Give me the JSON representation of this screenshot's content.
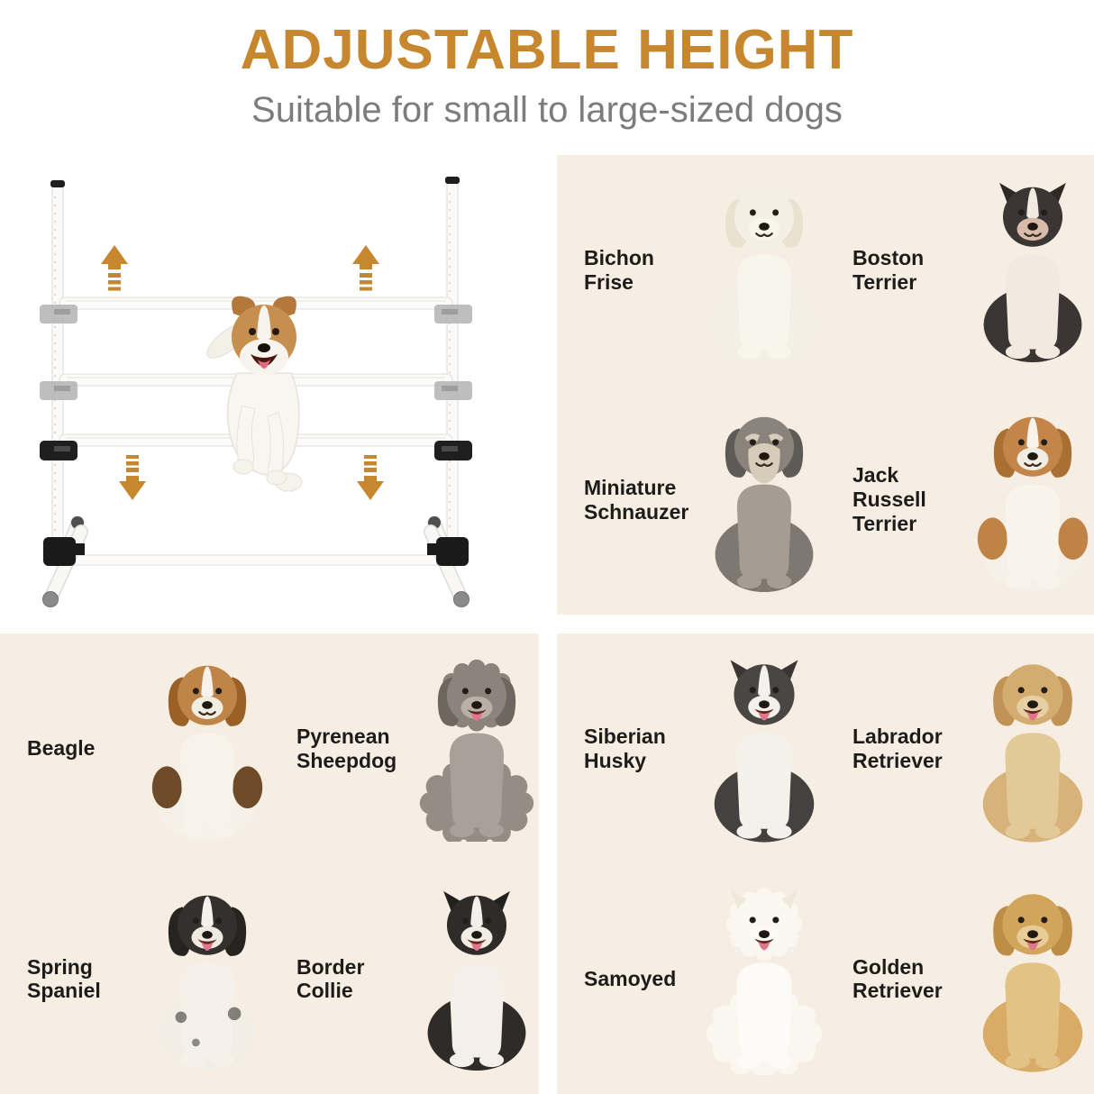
{
  "header": {
    "title": "ADJUSTABLE HEIGHT",
    "subtitle": "Suitable for small to large-sized dogs"
  },
  "colors": {
    "accent_orange": "#C6872F",
    "subtitle_gray": "#7C7C7C",
    "panel_background": "#F7EEE3",
    "label_color": "#1D1C1A",
    "page_background": "#FFFFFF"
  },
  "product_illustration": {
    "name": "adjustable-height dog agility jump with jumping dog",
    "icons": [
      "up-arrow",
      "up-arrow",
      "down-arrow",
      "down-arrow"
    ],
    "arrow_color": "#C6872F"
  },
  "panels": [
    {
      "id": "small-dogs",
      "position": "top-right",
      "breeds": [
        {
          "label": "Bichon Frise",
          "illustration": {
            "ears": "drop",
            "fluffy": true,
            "colors": {
              "body": "#F3EFE4",
              "chest": "#F8F5EC",
              "head": "#F3EFE4",
              "ear": "#EAE2D1",
              "muzzle": "#F8F5EC"
            }
          }
        },
        {
          "label": "Boston Terrier",
          "illustration": {
            "ears": "pointy",
            "colors": {
              "body": "#3B3533",
              "chest": "#F2EAE0",
              "head": "#3B3533",
              "ear": "#2E2927",
              "muzzle": "#D8BBAB",
              "blaze": "#F2EAE0"
            }
          }
        },
        {
          "label": "Miniature Schnauzer",
          "illustration": {
            "ears": "drop",
            "beard": true,
            "brows": true,
            "colors": {
              "body": "#7D7872",
              "chest": "#A59D93",
              "head": "#89837C",
              "ear": "#5E5A55",
              "muzzle": "#D6CCBA"
            }
          }
        },
        {
          "label": "Jack Russell Terrier",
          "illustration": {
            "ears": "drop",
            "colors": {
              "body": "#F5F1E8",
              "chest": "#F8F4EC",
              "head": "#C3854A",
              "ear": "#A96F33",
              "muzzle": "#F2EDE2",
              "blaze": "#F8F4EC",
              "saddle": "#C08347"
            }
          }
        }
      ]
    },
    {
      "id": "medium-dogs",
      "position": "bottom-left",
      "breeds": [
        {
          "label": "Beagle",
          "illustration": {
            "ears": "drop",
            "colors": {
              "body": "#F5F1E8",
              "chest": "#F7F3EA",
              "head": "#BE8448",
              "ear": "#9A6126",
              "muzzle": "#F2EDE1",
              "blaze": "#F7F3EA",
              "saddle": "#6E4A28"
            }
          }
        },
        {
          "label": "Pyrenean Sheepdog",
          "illustration": {
            "ears": "drop",
            "fluffy": true,
            "tongue": true,
            "colors": {
              "body": "#958D85",
              "chest": "#A9A199",
              "head": "#8C847C",
              "ear": "#6E6760",
              "muzzle": "#B9B1A7"
            }
          }
        },
        {
          "label": "Spring Spaniel",
          "illustration": {
            "ears": "drop",
            "tongue": true,
            "spots": true,
            "colors": {
              "body": "#F2EEE6",
              "chest": "#F5F1EA",
              "head": "#33302D",
              "ear": "#262320",
              "muzzle": "#EFEAE1",
              "blaze": "#F5F1EA"
            }
          }
        },
        {
          "label": "Border Collie",
          "illustration": {
            "ears": "pointy",
            "tongue": true,
            "colors": {
              "body": "#2E2B29",
              "chest": "#F4F0E9",
              "head": "#2E2B29",
              "ear": "#232120",
              "muzzle": "#F1ECE4",
              "blaze": "#F4F0E9"
            }
          }
        }
      ]
    },
    {
      "id": "large-dogs",
      "position": "bottom-right",
      "breeds": [
        {
          "label": "Siberian Husky",
          "illustration": {
            "ears": "pointy",
            "tongue": true,
            "colors": {
              "body": "#454140",
              "chest": "#F4F1EB",
              "head": "#4A4643",
              "ear": "#393634",
              "muzzle": "#F4F1EB",
              "blaze": "#F4F1EB"
            }
          }
        },
        {
          "label": "Labrador Retriever",
          "illustration": {
            "ears": "drop",
            "tongue": true,
            "colors": {
              "body": "#D7B27A",
              "chest": "#E3C997",
              "head": "#D3AC6F",
              "ear": "#C09255",
              "muzzle": "#E6CFA3"
            }
          }
        },
        {
          "label": "Samoyed",
          "illustration": {
            "ears": "pointy",
            "fluffy": true,
            "tongue": true,
            "colors": {
              "body": "#FAF7F0",
              "chest": "#FDFBF7",
              "head": "#FAF7F0",
              "ear": "#EFE8DB",
              "muzzle": "#FBF9F3"
            }
          }
        },
        {
          "label": "Golden Retriever",
          "illustration": {
            "ears": "drop",
            "tongue": true,
            "colors": {
              "body": "#D8AC66",
              "chest": "#E3C286",
              "head": "#D2A55C",
              "ear": "#BE8E46",
              "muzzle": "#E7CC95"
            }
          }
        }
      ]
    }
  ]
}
